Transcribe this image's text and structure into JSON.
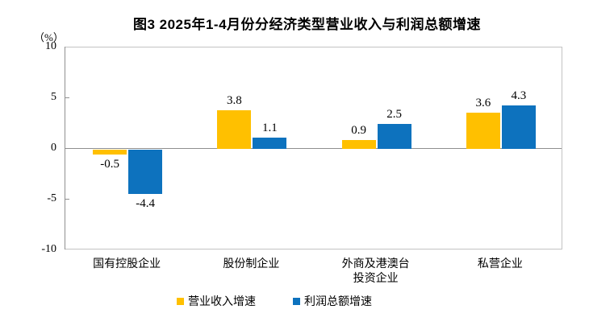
{
  "chart_data": {
    "type": "bar",
    "title": "图3 2025年1-4月份分经济类型营业收入与利润总额增速",
    "unit_label": "（%）",
    "categories": [
      "国有控股企业",
      "股份制企业",
      "外商及港澳台\n投资企业",
      "私营企业"
    ],
    "series": [
      {
        "name": "营业收入增速",
        "color": "#FFC000",
        "values": [
          -0.5,
          3.8,
          0.9,
          3.6
        ]
      },
      {
        "name": "利润总额增速",
        "color": "#0D72BE",
        "values": [
          -4.4,
          1.1,
          2.5,
          4.3
        ]
      }
    ],
    "ylim": [
      -10,
      10
    ],
    "yticks": [
      10,
      5,
      0,
      -5,
      -10
    ],
    "ylabel": "（%）",
    "xlabel": "",
    "grid": false,
    "legend_position": "bottom"
  }
}
